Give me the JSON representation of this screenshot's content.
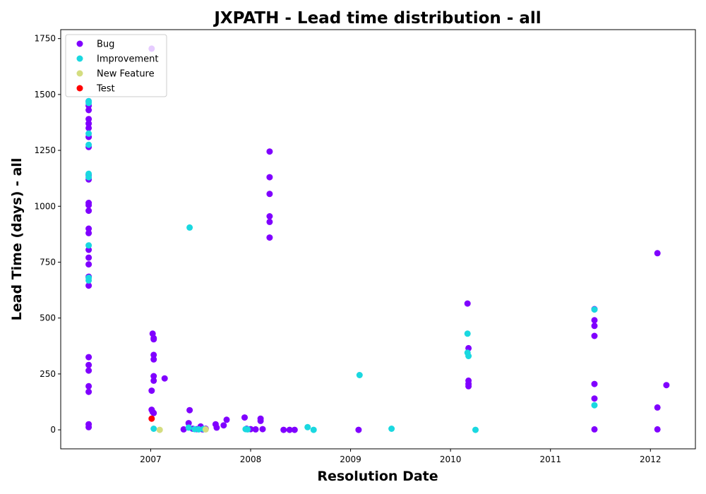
{
  "chart_data": {
    "type": "scatter",
    "title": "JXPATH - Lead time distribution - all",
    "xlabel": "Resolution Date",
    "ylabel": "Lead Time (days) - all",
    "xlim": [
      2006.1,
      2012.45
    ],
    "ylim": [
      -85,
      1790
    ],
    "xticks": [
      2007,
      2008,
      2009,
      2010,
      2011,
      2012
    ],
    "xtick_labels": [
      "2007",
      "2008",
      "2009",
      "2010",
      "2011",
      "2012"
    ],
    "yticks": [
      0,
      250,
      500,
      750,
      1000,
      1250,
      1500,
      1750
    ],
    "ytick_labels": [
      "0",
      "250",
      "500",
      "750",
      "1000",
      "1250",
      "1500",
      "1750"
    ],
    "grid": false,
    "legend_position": "top-left",
    "series": [
      {
        "name": "Bug",
        "color": "#8000ff",
        "points": [
          [
            2006.38,
            1470
          ],
          [
            2006.38,
            1450
          ],
          [
            2006.38,
            1430
          ],
          [
            2006.38,
            1390
          ],
          [
            2006.38,
            1370
          ],
          [
            2006.38,
            1350
          ],
          [
            2006.38,
            1310
          ],
          [
            2006.38,
            1265
          ],
          [
            2006.38,
            1140
          ],
          [
            2006.38,
            1120
          ],
          [
            2006.38,
            1015
          ],
          [
            2006.38,
            1005
          ],
          [
            2006.38,
            980
          ],
          [
            2006.38,
            900
          ],
          [
            2006.38,
            880
          ],
          [
            2006.38,
            805
          ],
          [
            2006.38,
            770
          ],
          [
            2006.38,
            740
          ],
          [
            2006.38,
            685
          ],
          [
            2006.38,
            645
          ],
          [
            2006.38,
            325
          ],
          [
            2006.38,
            290
          ],
          [
            2006.38,
            265
          ],
          [
            2006.38,
            195
          ],
          [
            2006.38,
            170
          ],
          [
            2006.38,
            25
          ],
          [
            2006.38,
            12
          ],
          [
            2007.01,
            1705
          ],
          [
            2007.02,
            430
          ],
          [
            2007.03,
            410
          ],
          [
            2007.03,
            405
          ],
          [
            2007.03,
            335
          ],
          [
            2007.03,
            315
          ],
          [
            2007.03,
            240
          ],
          [
            2007.03,
            220
          ],
          [
            2007.01,
            175
          ],
          [
            2007.14,
            230
          ],
          [
            2007.01,
            90
          ],
          [
            2007.02,
            80
          ],
          [
            2007.03,
            75
          ],
          [
            2007.33,
            2
          ],
          [
            2007.38,
            30
          ],
          [
            2007.39,
            88
          ],
          [
            2007.42,
            5
          ],
          [
            2007.46,
            3
          ],
          [
            2007.5,
            15
          ],
          [
            2007.52,
            2
          ],
          [
            2007.55,
            5
          ],
          [
            2007.65,
            25
          ],
          [
            2007.66,
            10
          ],
          [
            2007.73,
            20
          ],
          [
            2007.76,
            45
          ],
          [
            2007.94,
            55
          ],
          [
            2007.96,
            5
          ],
          [
            2008.0,
            3
          ],
          [
            2008.05,
            2
          ],
          [
            2008.1,
            50
          ],
          [
            2008.1,
            40
          ],
          [
            2008.12,
            3
          ],
          [
            2008.19,
            1245
          ],
          [
            2008.19,
            1130
          ],
          [
            2008.19,
            1055
          ],
          [
            2008.19,
            955
          ],
          [
            2008.19,
            930
          ],
          [
            2008.19,
            860
          ],
          [
            2008.33,
            0
          ],
          [
            2008.39,
            0
          ],
          [
            2008.44,
            0
          ],
          [
            2009.08,
            0
          ],
          [
            2010.17,
            565
          ],
          [
            2010.18,
            365
          ],
          [
            2010.18,
            220
          ],
          [
            2010.18,
            205
          ],
          [
            2010.18,
            195
          ],
          [
            2011.44,
            540
          ],
          [
            2011.44,
            490
          ],
          [
            2011.44,
            465
          ],
          [
            2011.44,
            420
          ],
          [
            2011.44,
            205
          ],
          [
            2011.44,
            140
          ],
          [
            2011.44,
            2
          ],
          [
            2012.07,
            790
          ],
          [
            2012.07,
            100
          ],
          [
            2012.07,
            2
          ],
          [
            2012.16,
            200
          ]
        ]
      },
      {
        "name": "Improvement",
        "color": "#1ad8e0",
        "points": [
          [
            2006.38,
            1470
          ],
          [
            2006.38,
            1462
          ],
          [
            2006.38,
            1325
          ],
          [
            2006.38,
            1275
          ],
          [
            2006.38,
            1145
          ],
          [
            2006.38,
            1130
          ],
          [
            2006.38,
            825
          ],
          [
            2006.38,
            680
          ],
          [
            2006.38,
            668
          ],
          [
            2007.03,
            5
          ],
          [
            2007.39,
            905
          ],
          [
            2007.38,
            10
          ],
          [
            2007.44,
            3
          ],
          [
            2007.48,
            2
          ],
          [
            2007.53,
            4
          ],
          [
            2007.95,
            3
          ],
          [
            2007.97,
            2
          ],
          [
            2008.57,
            12
          ],
          [
            2008.63,
            0
          ],
          [
            2009.09,
            245
          ],
          [
            2009.41,
            5
          ],
          [
            2010.17,
            430
          ],
          [
            2010.17,
            345
          ],
          [
            2010.18,
            330
          ],
          [
            2010.25,
            0
          ],
          [
            2011.44,
            538
          ],
          [
            2011.44,
            110
          ]
        ]
      },
      {
        "name": "New Feature",
        "color": "#d4dd80",
        "points": [
          [
            2007.09,
            0
          ],
          [
            2007.55,
            2
          ]
        ]
      },
      {
        "name": "Test",
        "color": "#ff0000",
        "points": [
          [
            2007.01,
            50
          ]
        ]
      }
    ]
  }
}
